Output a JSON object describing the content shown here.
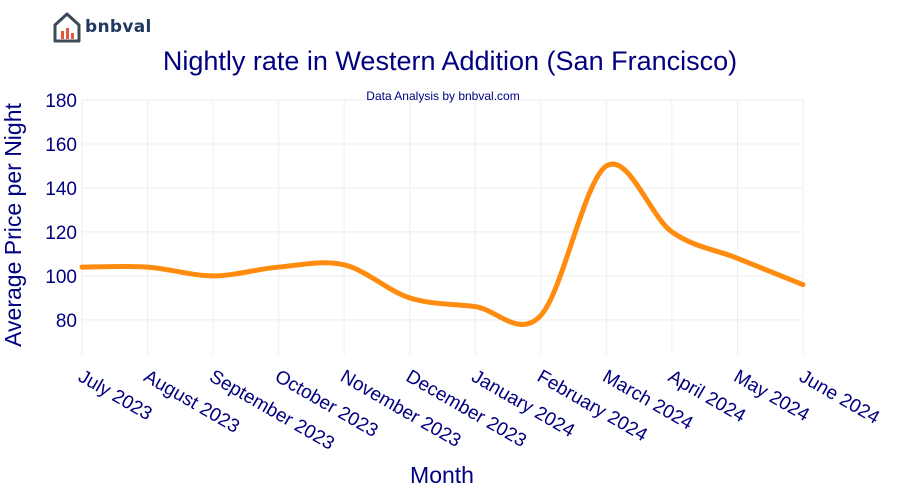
{
  "brand": {
    "name": "bnbval",
    "icon": "house-chart-icon"
  },
  "chart_data": {
    "type": "line",
    "title": "Nightly rate in Western Addition (San Francisco)",
    "subtitle": "Data Analysis by bnbval.com",
    "xlabel": "Month",
    "ylabel": "Average Price per Night",
    "categories": [
      "July 2023",
      "August 2023",
      "September 2023",
      "October 2023",
      "November 2023",
      "December 2023",
      "January 2024",
      "February 2024",
      "March 2024",
      "April 2024",
      "May 2024",
      "June 2024"
    ],
    "series": [
      {
        "values": [
          104,
          104,
          100,
          104,
          105,
          90,
          86,
          82,
          150,
          120,
          108,
          96
        ]
      }
    ],
    "yticks": [
      80,
      100,
      120,
      140,
      160,
      180
    ],
    "ylim": [
      64,
      180
    ],
    "grid": true,
    "colors": {
      "line": "#ff8c0f",
      "text": "#000080",
      "grid": "#eeeeee"
    }
  }
}
